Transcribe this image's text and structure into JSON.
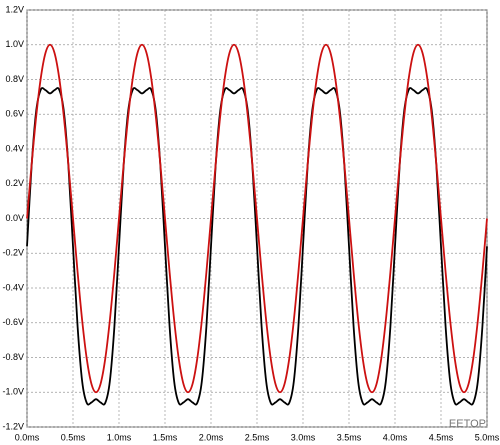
{
  "chart_data": {
    "type": "line",
    "x": [
      0,
      0.05,
      0.1,
      0.15,
      0.2,
      0.25,
      0.3,
      0.35,
      0.4,
      0.45,
      0.5,
      0.55,
      0.6,
      0.65,
      0.7,
      0.75,
      0.8,
      0.85,
      0.9,
      0.95,
      1,
      1.05,
      1.1,
      1.15,
      1.2,
      1.25,
      1.3,
      1.35,
      1.4,
      1.45,
      1.5,
      1.55,
      1.6,
      1.65,
      1.7,
      1.75,
      1.8,
      1.85,
      1.9,
      1.95,
      2,
      2.05,
      2.1,
      2.15,
      2.2,
      2.25,
      2.3,
      2.35,
      2.4,
      2.45,
      2.5,
      2.55,
      2.6,
      2.65,
      2.7,
      2.75,
      2.8,
      2.85,
      2.9,
      2.95,
      3,
      3.05,
      3.1,
      3.15,
      3.2,
      3.25,
      3.3,
      3.35,
      3.4,
      3.45,
      3.5,
      3.55,
      3.6,
      3.65,
      3.7,
      3.75,
      3.8,
      3.85,
      3.9,
      3.95,
      4,
      4.05,
      4.1,
      4.15,
      4.2,
      4.25,
      4.3,
      4.35,
      4.4,
      4.45,
      4.5,
      4.55,
      4.6,
      4.65,
      4.7,
      4.75,
      4.8,
      4.85,
      4.9,
      4.95,
      5
    ],
    "series": [
      {
        "color": "#000000",
        "values": [
          -0.16,
          0.302,
          0.619,
          0.742,
          0.739,
          0.72,
          0.739,
          0.742,
          0.619,
          0.302,
          -0.16,
          -0.622,
          -0.939,
          -1.062,
          -1.059,
          -1.04,
          -1.059,
          -1.062,
          -0.939,
          -0.622,
          -0.16,
          0.302,
          0.619,
          0.742,
          0.739,
          0.72,
          0.739,
          0.742,
          0.619,
          0.302,
          -0.16,
          -0.622,
          -0.939,
          -1.062,
          -1.059,
          -1.04,
          -1.059,
          -1.062,
          -0.939,
          -0.622,
          -0.16,
          0.302,
          0.619,
          0.742,
          0.739,
          0.72,
          0.739,
          0.742,
          0.619,
          0.302,
          -0.16,
          -0.622,
          -0.939,
          -1.062,
          -1.059,
          -1.04,
          -1.059,
          -1.062,
          -0.939,
          -0.622,
          -0.16,
          0.302,
          0.619,
          0.742,
          0.739,
          0.72,
          0.739,
          0.742,
          0.619,
          0.302,
          -0.16,
          -0.622,
          -0.939,
          -1.062,
          -1.059,
          -1.04,
          -1.059,
          -1.062,
          -0.939,
          -0.622,
          -0.16,
          0.302,
          0.619,
          0.742,
          0.739,
          0.72,
          0.739,
          0.742,
          0.619,
          0.302,
          -0.16,
          -0.622,
          -0.939,
          -1.062,
          -1.059,
          -1.04,
          -1.059,
          -1.062,
          -0.939,
          -0.622,
          -0.16
        ]
      },
      {
        "color": "#cc1111",
        "values": [
          0,
          0.309,
          0.588,
          0.809,
          0.951,
          1,
          0.951,
          0.809,
          0.588,
          0.309,
          0,
          -0.309,
          -0.588,
          -0.809,
          -0.951,
          -1,
          -0.951,
          -0.809,
          -0.588,
          -0.309,
          0,
          0.309,
          0.588,
          0.809,
          0.951,
          1,
          0.951,
          0.809,
          0.588,
          0.309,
          0,
          -0.309,
          -0.588,
          -0.809,
          -0.951,
          -1,
          -0.951,
          -0.809,
          -0.588,
          -0.309,
          0,
          0.309,
          0.588,
          0.809,
          0.951,
          1,
          0.951,
          0.809,
          0.588,
          0.309,
          0,
          -0.309,
          -0.588,
          -0.809,
          -0.951,
          -1,
          -0.951,
          -0.809,
          -0.588,
          -0.309,
          0,
          0.309,
          0.588,
          0.809,
          0.951,
          1,
          0.951,
          0.809,
          0.588,
          0.309,
          0,
          -0.309,
          -0.588,
          -0.809,
          -0.951,
          -1,
          -0.951,
          -0.809,
          -0.588,
          -0.309,
          0,
          0.309,
          0.588,
          0.809,
          0.951,
          1,
          0.951,
          0.809,
          0.588,
          0.309,
          0,
          -0.309,
          -0.588,
          -0.809,
          -0.951,
          -1,
          -0.951,
          -0.809,
          -0.588,
          -0.309,
          0
        ]
      }
    ],
    "xlim": [
      0,
      5
    ],
    "xticks": [
      {
        "value": 0,
        "label": "0.0ms"
      },
      {
        "value": 0.5,
        "label": "0.5ms"
      },
      {
        "value": 1,
        "label": "1.0ms"
      },
      {
        "value": 1.5,
        "label": "1.5ms"
      },
      {
        "value": 2,
        "label": "2.0ms"
      },
      {
        "value": 2.5,
        "label": "2.5ms"
      },
      {
        "value": 3,
        "label": "3.0ms"
      },
      {
        "value": 3.5,
        "label": "3.5ms"
      },
      {
        "value": 4,
        "label": "4.0ms"
      },
      {
        "value": 4.5,
        "label": "4.5ms"
      },
      {
        "value": 5,
        "label": "5.0ms"
      }
    ],
    "ylim": [
      -1.2,
      1.2
    ],
    "yticks": [
      {
        "value": 1.2,
        "label": "1.2V"
      },
      {
        "value": 1,
        "label": "1.0V"
      },
      {
        "value": 0.8,
        "label": "0.8V"
      },
      {
        "value": 0.6,
        "label": "0.6V"
      },
      {
        "value": 0.4,
        "label": "0.4V"
      },
      {
        "value": 0.2,
        "label": "0.2V"
      },
      {
        "value": 0,
        "label": "0.0V"
      },
      {
        "value": -0.2,
        "label": "-0.2V"
      },
      {
        "value": -0.4,
        "label": "-0.4V"
      },
      {
        "value": -0.6,
        "label": "-0.6V"
      },
      {
        "value": -0.8,
        "label": "-0.8V"
      },
      {
        "value": -1,
        "label": "-1.0V"
      },
      {
        "value": -1.2,
        "label": "-1.2V"
      }
    ],
    "grid": true,
    "watermark": "EETOP"
  }
}
